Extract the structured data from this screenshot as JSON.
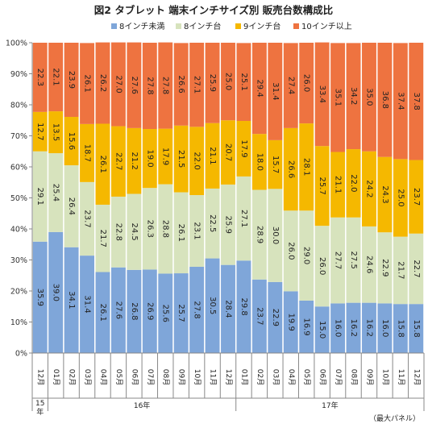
{
  "chart_data": {
    "type": "bar",
    "stacked": true,
    "percent": true,
    "title": "図2 タブレット 端末インチサイズ別 販売台数構成比",
    "source": "（最大パネル）",
    "categories": [
      "12月",
      "01月",
      "02月",
      "03月",
      "04月",
      "05月",
      "06月",
      "07月",
      "08月",
      "09月",
      "10月",
      "11月",
      "12月",
      "01月",
      "02月",
      "03月",
      "04月",
      "05月",
      "06月",
      "07月",
      "08月",
      "09月",
      "10月",
      "11月",
      "12月"
    ],
    "year_labels": [
      {
        "label": "15\n年",
        "from": 0,
        "to": 0
      },
      {
        "label": "16年",
        "from": 1,
        "to": 12
      },
      {
        "label": "17年",
        "from": 13,
        "to": 24
      }
    ],
    "series": [
      {
        "name": "8インチ未満",
        "color": "#7fa6d9",
        "values": [
          35.9,
          39.0,
          34.1,
          31.4,
          26.1,
          27.6,
          26.8,
          26.9,
          25.6,
          25.7,
          27.8,
          30.5,
          28.4,
          29.8,
          23.7,
          22.9,
          19.9,
          16.9,
          15.0,
          16.0,
          16.2,
          16.2,
          16.0,
          15.8,
          15.8
        ]
      },
      {
        "name": "8インチ台",
        "color": "#d7e3bd",
        "values": [
          29.1,
          25.4,
          26.4,
          23.7,
          21.7,
          22.8,
          24.5,
          26.3,
          28.8,
          26.1,
          23.1,
          22.5,
          25.9,
          27.1,
          28.9,
          30.0,
          26.0,
          29.0,
          26.0,
          27.7,
          27.5,
          24.6,
          22.9,
          21.7,
          22.7
        ]
      },
      {
        "name": "9インチ台",
        "color": "#f5b800",
        "values": [
          12.7,
          13.5,
          15.6,
          18.7,
          26.1,
          22.7,
          21.2,
          19.0,
          17.9,
          21.5,
          22.0,
          21.1,
          20.7,
          17.9,
          18.0,
          15.7,
          26.6,
          28.1,
          25.7,
          21.1,
          22.0,
          24.2,
          24.3,
          25.0,
          23.7
        ]
      },
      {
        "name": "10インチ以上",
        "color": "#ee7340",
        "values": [
          22.3,
          22.1,
          23.9,
          26.1,
          26.2,
          27.0,
          27.6,
          27.8,
          27.8,
          26.6,
          27.1,
          25.9,
          25.0,
          25.1,
          29.4,
          31.4,
          27.4,
          26.0,
          33.4,
          35.1,
          34.2,
          35.0,
          36.8,
          37.4,
          37.8
        ]
      }
    ],
    "yticks": [
      "0%",
      "10%",
      "20%",
      "30%",
      "40%",
      "50%",
      "60%",
      "70%",
      "80%",
      "90%",
      "100%"
    ],
    "ylim": [
      0,
      100
    ],
    "grid": false,
    "legend": "top-center"
  }
}
